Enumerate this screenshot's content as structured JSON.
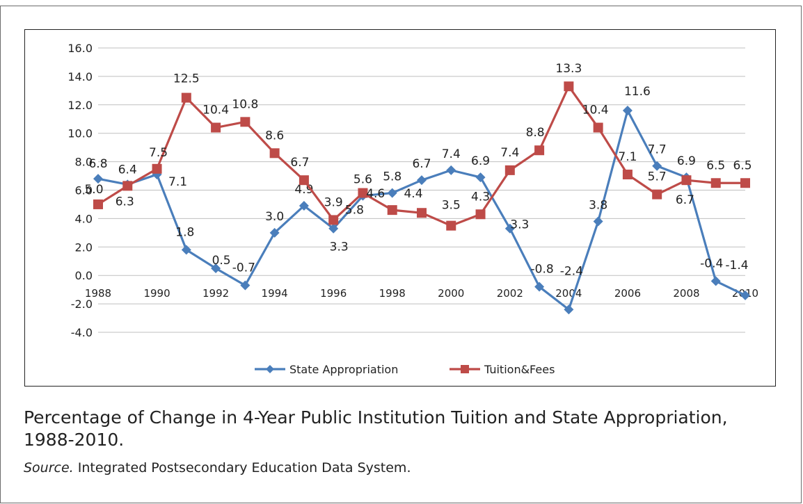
{
  "chart_data": {
    "type": "line",
    "x": [
      1988,
      1989,
      1990,
      1991,
      1992,
      1993,
      1994,
      1995,
      1996,
      1997,
      1998,
      1999,
      2000,
      2001,
      2002,
      2003,
      2004,
      2005,
      2006,
      2007,
      2008,
      2009,
      2010
    ],
    "x_tick_labels": [
      "1988",
      "1990",
      "1992",
      "1994",
      "1996",
      "1998",
      "2000",
      "2002",
      "2004",
      "2006",
      "2008",
      "2010"
    ],
    "y_tick_labels": [
      "16.0",
      "14.0",
      "12.0",
      "10.0",
      "8.0",
      "6.0",
      "4.0",
      "2.0",
      "0.0",
      "-2.0",
      "-4.0"
    ],
    "ylim": [
      -4,
      16
    ],
    "grid": true,
    "legend_position": "bottom",
    "series": [
      {
        "name": "State Appropriation",
        "color": "#4a7ebb",
        "marker": "diamond",
        "values": [
          6.8,
          6.4,
          7.1,
          1.8,
          0.5,
          -0.7,
          3.0,
          4.9,
          3.3,
          5.6,
          5.8,
          6.7,
          7.4,
          6.9,
          3.3,
          -0.8,
          -2.4,
          3.8,
          11.6,
          7.7,
          6.9,
          -0.4,
          -1.4
        ]
      },
      {
        "name": "Tuition&Fees",
        "color": "#be4b48",
        "marker": "square",
        "values": [
          5.0,
          6.3,
          7.5,
          12.5,
          10.4,
          10.8,
          8.6,
          6.7,
          3.9,
          5.8,
          4.6,
          4.4,
          3.5,
          4.3,
          7.4,
          8.8,
          13.3,
          10.4,
          7.1,
          5.7,
          6.7,
          6.5,
          6.5
        ]
      }
    ]
  },
  "caption": {
    "title": "Percentage of Change in 4-Year Public Institution Tuition and State Appropriation, 1988-2010.",
    "source_label": "Source.",
    "source_text": " Integrated Postsecondary Education Data System."
  }
}
